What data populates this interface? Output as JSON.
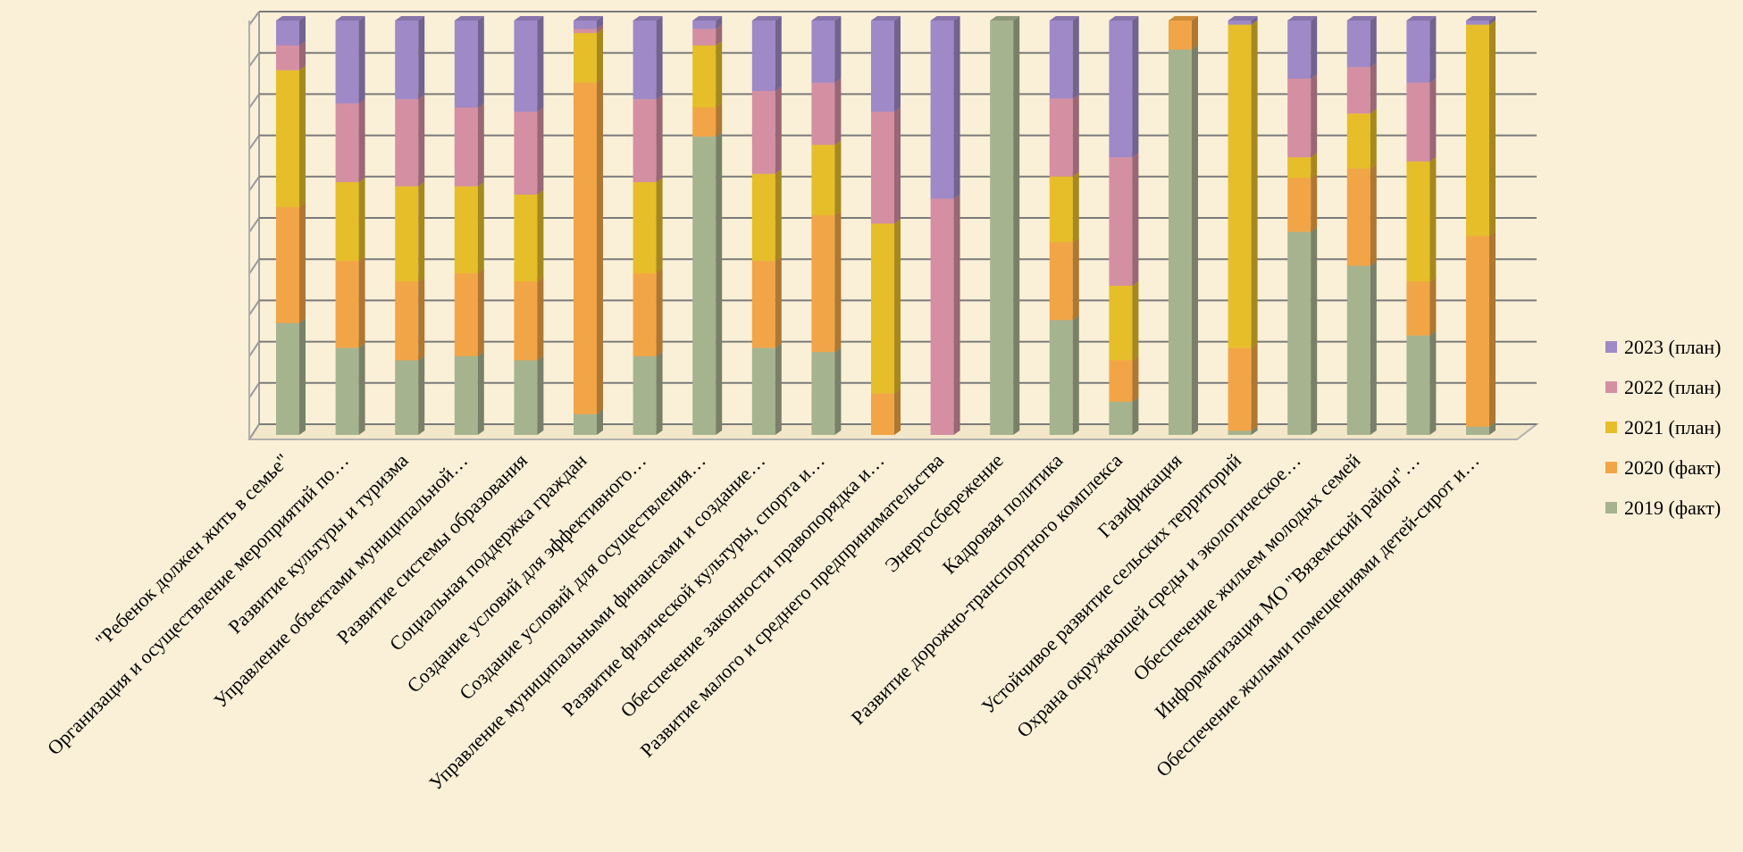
{
  "chart_data": {
    "type": "bar",
    "stacked": "100%",
    "three_d": true,
    "grid": true,
    "legend_position": "right",
    "ylim": [
      0,
      100
    ],
    "categories": [
      "\"Ребенок должен жить в семье\"",
      "Организация и осуществление мероприятий по…",
      "Развитие культуры и туризма",
      "Управление объектами муниципальной…",
      "Развитие системы образования",
      "Социальная поддержка граждан",
      "Создание условий для эффективного…",
      "Создание условий для осуществления…",
      "Управление муниципальными финансами и создание…",
      "Развитие физической культуры, спорта и…",
      "Обеспечение законности правопорядка и…",
      "Развитие малого и среднего предпринимательства",
      "Энергосбережение",
      "Кадровая политика",
      "Развитие дорожно-транспортного комплекса",
      "Газификация",
      "Устойчивое развитие сельских территорий",
      "Охрана окружающей среды и экологическое…",
      "Обеспечение жильем молодых семей",
      "Информатизация МО \"Вяземский район\"…",
      "Обеспечение жилыми помещениями детей-сирот и…"
    ],
    "series": [
      {
        "name": "2019 (факт)",
        "color": "#A6B38F",
        "values": [
          27,
          21,
          18,
          19,
          18,
          5,
          19,
          72,
          21,
          20,
          0,
          0,
          100,
          28,
          8,
          93,
          1,
          49,
          40,
          24,
          2
        ]
      },
      {
        "name": "2020 (факт)",
        "color": "#F2A546",
        "values": [
          28,
          21,
          19,
          20,
          19,
          80,
          20,
          7,
          21,
          33,
          10,
          0,
          0,
          19,
          10,
          7,
          20,
          13,
          23,
          13,
          46
        ]
      },
      {
        "name": "2021 (план)",
        "color": "#E6BE2A",
        "values": [
          33,
          19,
          23,
          21,
          21,
          12,
          22,
          15,
          21,
          17,
          41,
          0,
          0,
          16,
          18,
          0,
          78,
          5,
          13,
          29,
          51
        ]
      },
      {
        "name": "2022 (план)",
        "color": "#D48FA3",
        "values": [
          6,
          19,
          21,
          19,
          20,
          1,
          20,
          4,
          20,
          15,
          27,
          57,
          0,
          19,
          31,
          0,
          0,
          19,
          11,
          19,
          0
        ]
      },
      {
        "name": "2023 (план)",
        "color": "#9F89C7",
        "values": [
          6,
          20,
          19,
          21,
          22,
          2,
          19,
          2,
          17,
          15,
          22,
          43,
          0,
          19,
          33,
          0,
          1,
          14,
          11,
          15,
          1
        ]
      }
    ]
  }
}
